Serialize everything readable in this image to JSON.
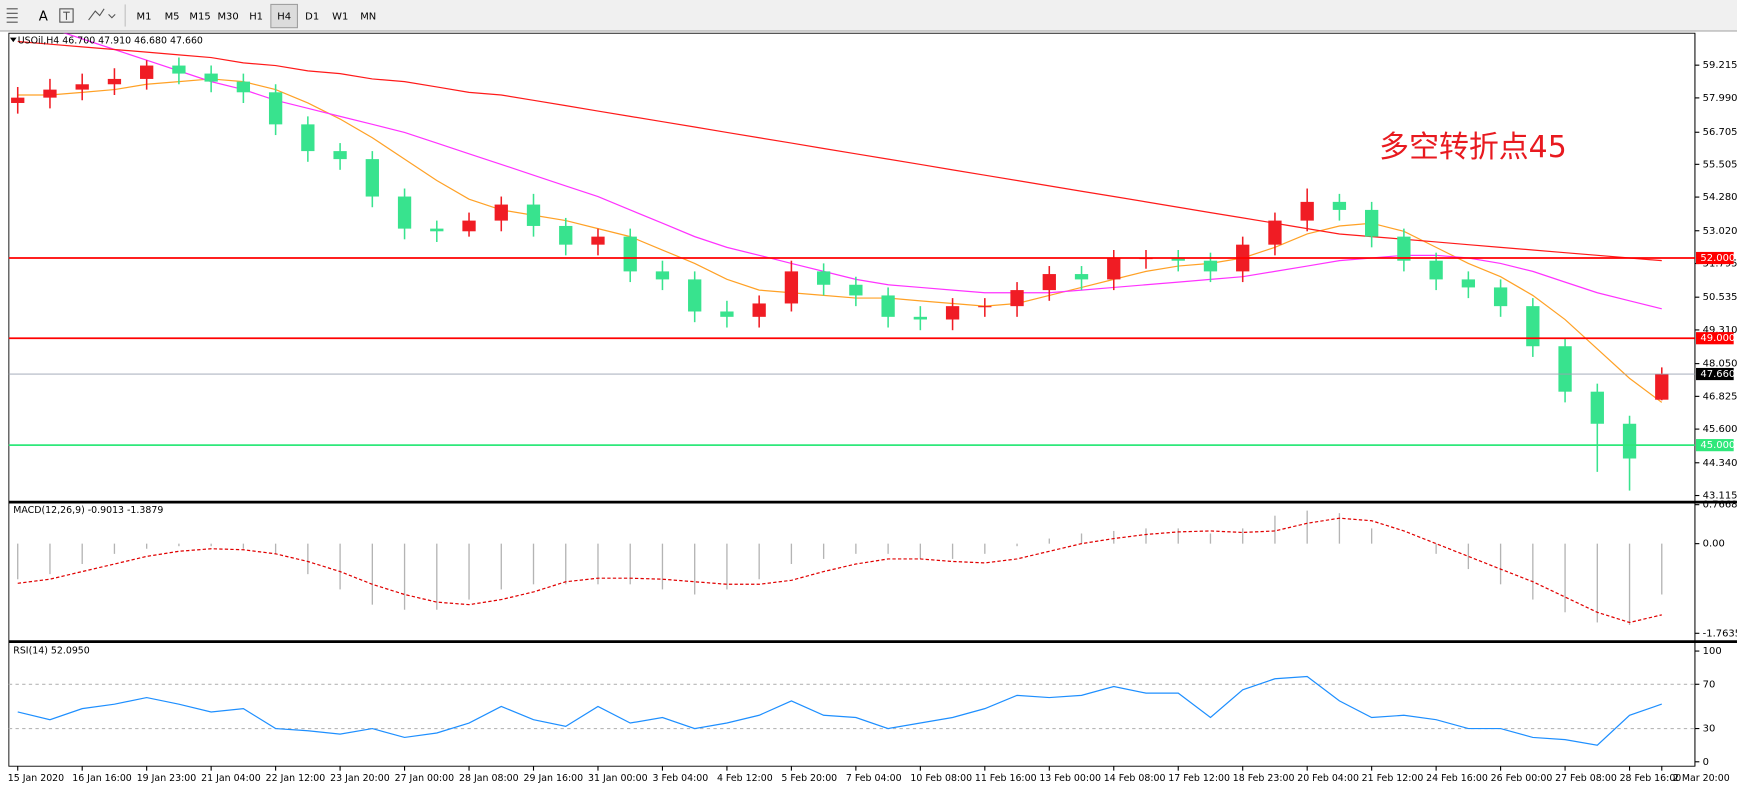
{
  "toolbar": {
    "text_tool": "A",
    "timeframes": [
      "M1",
      "M5",
      "M15",
      "M30",
      "H1",
      "H4",
      "D1",
      "W1",
      "MN"
    ]
  },
  "chart_data": [
    {
      "type": "candlestick",
      "title": "USOil,H4 46.700 47.910 46.680 47.660",
      "annotation": "多空转折点45",
      "categories": [
        "15 Jan 2020",
        null,
        "16 Jan 16:00",
        null,
        "19 Jan 23:00",
        null,
        "21 Jan 04:00",
        null,
        "22 Jan 12:00",
        null,
        "23 Jan 20:00",
        null,
        "27 Jan 00:00",
        null,
        "28 Jan 08:00",
        null,
        "29 Jan 16:00",
        null,
        "31 Jan 00:00",
        null,
        "3 Feb 04:00",
        null,
        "4 Feb 12:00",
        null,
        "5 Feb 20:00",
        null,
        "7 Feb 04:00",
        null,
        "10 Feb 08:00",
        null,
        "11 Feb 16:00",
        null,
        "13 Feb 00:00",
        null,
        "14 Feb 08:00",
        null,
        "17 Feb 12:00",
        null,
        "18 Feb 23:00",
        null,
        "20 Feb 04:00",
        null,
        "21 Feb 12:00",
        null,
        "24 Feb 16:00",
        null,
        "26 Feb 00:00",
        null,
        "27 Feb 08:00",
        null,
        "28 Feb 16:00",
        "2 Mar 20:00"
      ],
      "open": [
        57.8,
        58.0,
        58.3,
        58.5,
        58.7,
        59.2,
        58.9,
        58.6,
        58.2,
        57.0,
        56.0,
        55.7,
        54.3,
        53.1,
        53.0,
        53.4,
        54.0,
        53.2,
        52.5,
        52.8,
        51.5,
        51.2,
        50.0,
        49.8,
        50.3,
        51.5,
        51.0,
        50.6,
        49.8,
        49.7,
        50.2,
        50.2,
        50.8,
        51.4,
        51.2,
        52.0,
        52.0,
        51.9,
        51.5,
        52.5,
        53.4,
        54.1,
        53.8,
        52.8,
        51.9,
        51.2,
        50.9,
        50.2,
        48.7,
        47.0,
        45.8,
        46.7
      ],
      "high": [
        58.4,
        58.7,
        58.9,
        59.1,
        59.4,
        59.5,
        59.2,
        58.9,
        58.5,
        57.3,
        56.3,
        56.0,
        54.6,
        53.4,
        53.7,
        54.3,
        54.4,
        53.5,
        53.1,
        53.1,
        51.9,
        51.5,
        50.4,
        50.6,
        51.9,
        51.8,
        51.3,
        50.9,
        50.2,
        50.5,
        50.5,
        51.1,
        51.7,
        51.7,
        52.3,
        52.3,
        52.3,
        52.2,
        52.8,
        53.7,
        54.6,
        54.4,
        54.1,
        53.1,
        52.2,
        51.5,
        51.2,
        50.5,
        49.0,
        47.3,
        46.1,
        47.91
      ],
      "low": [
        57.4,
        57.6,
        57.9,
        58.1,
        58.3,
        58.5,
        58.2,
        57.8,
        56.6,
        55.6,
        55.3,
        53.9,
        52.7,
        52.6,
        52.8,
        53.0,
        52.8,
        52.1,
        52.1,
        51.1,
        50.8,
        49.6,
        49.4,
        49.4,
        50.0,
        50.6,
        50.2,
        49.4,
        49.3,
        49.3,
        49.8,
        49.8,
        50.4,
        50.8,
        50.8,
        51.6,
        51.5,
        51.1,
        51.1,
        52.1,
        53.0,
        53.4,
        52.4,
        51.5,
        50.8,
        50.5,
        49.8,
        48.3,
        46.6,
        44.0,
        43.3,
        46.68
      ],
      "close": [
        58.0,
        58.3,
        58.5,
        58.7,
        59.2,
        58.9,
        58.6,
        58.2,
        57.0,
        56.0,
        55.7,
        54.3,
        53.1,
        53.0,
        53.4,
        54.0,
        53.2,
        52.5,
        52.8,
        51.5,
        51.2,
        50.0,
        49.8,
        50.3,
        51.5,
        51.0,
        50.6,
        49.8,
        49.7,
        50.2,
        50.2,
        50.8,
        51.4,
        51.2,
        52.0,
        52.0,
        51.9,
        51.5,
        52.5,
        53.4,
        54.1,
        53.8,
        52.8,
        51.9,
        51.2,
        50.9,
        50.2,
        48.7,
        47.0,
        45.8,
        44.5,
        47.66
      ],
      "up_color": "#f01c24",
      "down_color": "#38e38e",
      "series": [
        {
          "color": "#ffa126",
          "values": [
            58.1,
            58.1,
            58.2,
            58.3,
            58.5,
            58.6,
            58.7,
            58.6,
            58.3,
            57.8,
            57.2,
            56.5,
            55.7,
            54.9,
            54.2,
            53.8,
            53.6,
            53.4,
            53.1,
            52.8,
            52.3,
            51.8,
            51.2,
            50.8,
            50.7,
            50.6,
            50.5,
            50.5,
            50.4,
            50.3,
            50.2,
            50.3,
            50.6,
            50.9,
            51.2,
            51.5,
            51.7,
            51.8,
            52.0,
            52.4,
            52.9,
            53.2,
            53.3,
            53.0,
            52.4,
            51.8,
            51.3,
            50.6,
            49.7,
            48.6,
            47.5,
            46.6
          ]
        },
        {
          "color": "#ff33ff",
          "values": [
            60.8,
            60.6,
            60.2,
            59.8,
            59.4,
            59.0,
            58.6,
            58.3,
            57.9,
            57.6,
            57.3,
            57.0,
            56.7,
            56.3,
            55.9,
            55.5,
            55.1,
            54.7,
            54.3,
            53.8,
            53.3,
            52.8,
            52.4,
            52.1,
            51.8,
            51.5,
            51.2,
            51.0,
            50.9,
            50.8,
            50.7,
            50.7,
            50.7,
            50.8,
            50.9,
            51.0,
            51.1,
            51.2,
            51.3,
            51.5,
            51.7,
            51.9,
            52.0,
            52.1,
            52.1,
            52.0,
            51.8,
            51.5,
            51.1,
            50.7,
            50.4,
            50.1
          ]
        },
        {
          "color": "#ff1a1a",
          "values": [
            60.1,
            60.0,
            59.9,
            59.8,
            59.7,
            59.6,
            59.5,
            59.3,
            59.2,
            59.0,
            58.9,
            58.7,
            58.6,
            58.4,
            58.2,
            58.1,
            57.9,
            57.7,
            57.5,
            57.3,
            57.1,
            56.9,
            56.7,
            56.5,
            56.3,
            56.1,
            55.9,
            55.7,
            55.5,
            55.3,
            55.1,
            54.9,
            54.7,
            54.5,
            54.3,
            54.1,
            53.9,
            53.7,
            53.5,
            53.3,
            53.1,
            52.9,
            52.8,
            52.7,
            52.6,
            52.5,
            52.4,
            52.3,
            52.2,
            52.1,
            52.0,
            51.9
          ]
        }
      ],
      "hlines": [
        {
          "value": 52,
          "label": "52.000",
          "color": "#ff0000"
        },
        {
          "value": 49,
          "label": "49.000",
          "color": "#ff0000"
        },
        {
          "value": 45,
          "label": "45.000",
          "color": "#2ee87a"
        },
        {
          "value": 47.66,
          "label": "47.660",
          "color": "#9aa0b0",
          "box": "#000000"
        }
      ],
      "ylim": [
        42.93,
        60.41
      ],
      "yticks": [
        59.215,
        {
          "value": 57.99,
          "label": "57.990"
        },
        56.705,
        55.505,
        {
          "value": 54.28,
          "label": "54.280"
        },
        {
          "value": 53.02,
          "label": "53.020"
        },
        51.795,
        50.535,
        {
          "value": 49.31,
          "label": "49.310"
        },
        {
          "value": 48.05,
          "label": "48.050"
        },
        46.825,
        {
          "value": 45.6,
          "label": "45.600"
        },
        {
          "value": 44.34,
          "label": "44.340"
        },
        43.115
      ]
    },
    {
      "type": "macd",
      "title": "MACD(12,26,9) -0.9013 -1.3879",
      "histogram": [
        -0.7,
        -0.6,
        -0.4,
        -0.2,
        -0.1,
        -0.05,
        -0.05,
        -0.1,
        -0.2,
        -0.6,
        -0.9,
        -1.2,
        -1.3,
        -1.3,
        -1.1,
        -0.9,
        -0.8,
        -0.8,
        -0.8,
        -0.8,
        -0.9,
        -1.0,
        -0.9,
        -0.7,
        -0.4,
        -0.3,
        -0.2,
        -0.2,
        -0.3,
        -0.3,
        -0.2,
        -0.05,
        0.1,
        0.2,
        0.25,
        0.3,
        0.3,
        0.2,
        0.3,
        0.55,
        0.65,
        0.6,
        0.3,
        0.0,
        -0.2,
        -0.5,
        -0.8,
        -1.1,
        -1.35,
        -1.55,
        -1.6,
        -1.0
      ],
      "histogram_color": "#b4b4b4",
      "signal": [
        -0.78,
        -0.7,
        -0.55,
        -0.4,
        -0.25,
        -0.15,
        -0.1,
        -0.12,
        -0.2,
        -0.35,
        -0.55,
        -0.8,
        -1.0,
        -1.15,
        -1.2,
        -1.1,
        -0.95,
        -0.75,
        -0.68,
        -0.68,
        -0.7,
        -0.75,
        -0.8,
        -0.8,
        -0.72,
        -0.55,
        -0.4,
        -0.3,
        -0.3,
        -0.35,
        -0.38,
        -0.3,
        -0.15,
        0.0,
        0.1,
        0.18,
        0.23,
        0.25,
        0.22,
        0.25,
        0.4,
        0.5,
        0.45,
        0.25,
        0.0,
        -0.25,
        -0.5,
        -0.75,
        -1.05,
        -1.35,
        -1.55,
        -1.4
      ],
      "signal_color": "#e00000",
      "ylim": [
        -1.895,
        0.784
      ],
      "yticks": [
        0.7668,
        {
          "value": 0,
          "label": "0.00"
        },
        -1.7635
      ]
    },
    {
      "type": "line",
      "title": "RSI(14) 52.0950",
      "values": [
        45,
        38,
        48,
        52,
        58,
        52,
        45,
        48,
        30,
        28,
        25,
        30,
        22,
        26,
        35,
        50,
        38,
        32,
        50,
        35,
        40,
        30,
        35,
        42,
        55,
        42,
        40,
        30,
        35,
        40,
        48,
        60,
        58,
        60,
        68,
        62,
        62,
        40,
        65,
        75,
        77,
        55,
        40,
        42,
        38,
        30,
        30,
        22,
        20,
        15,
        42,
        52.1
      ],
      "color": "#1e8fff",
      "levels": [
        70,
        30
      ],
      "ylim": [
        -4,
        108
      ],
      "yticks": [
        100,
        70,
        30,
        0
      ]
    }
  ]
}
